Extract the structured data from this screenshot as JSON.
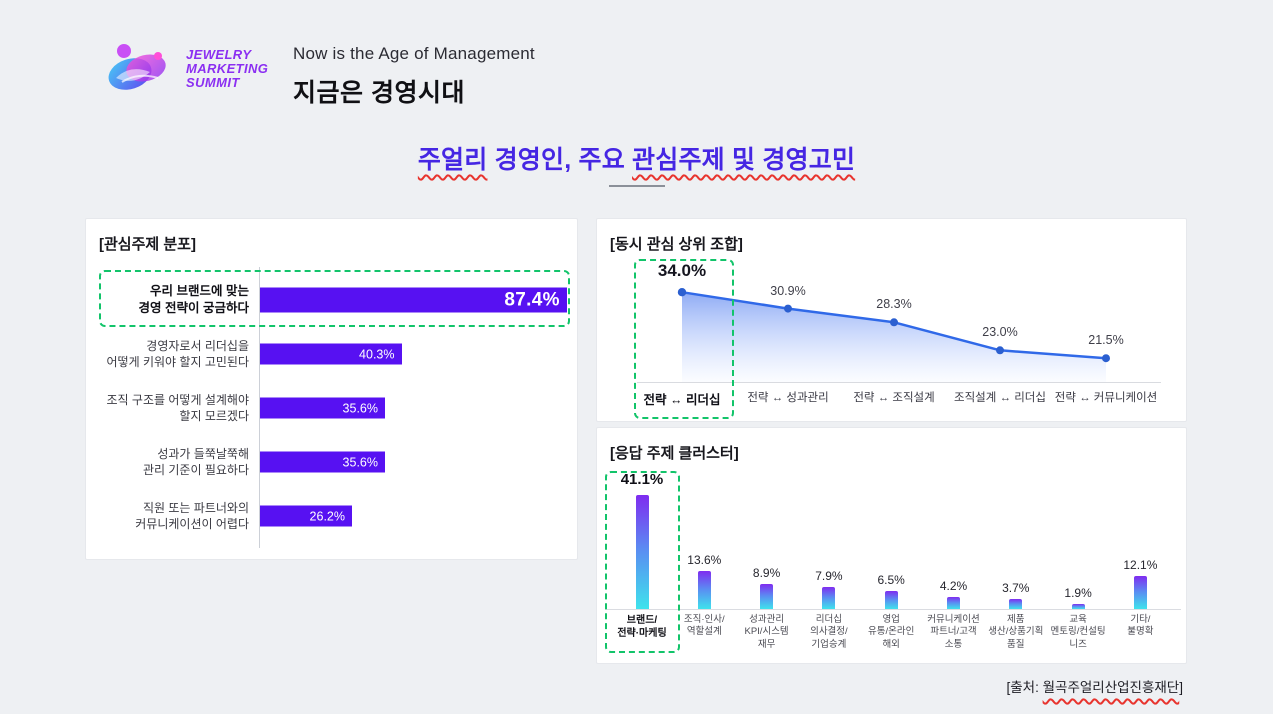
{
  "colors": {
    "accent_purple": "#5711f2",
    "title_blue": "#4526e3",
    "highlight_green": "#12c46a",
    "line_blue": "#3069e8",
    "cluster_gradient_top": "#7f2cf0",
    "cluster_gradient_bottom": "#3fe3ec",
    "wavy_red": "#e8342e"
  },
  "header": {
    "logo_lines": [
      "JEWELRY",
      "MARKETING",
      "SUMMIT"
    ],
    "title_en": "Now is the Age of Management",
    "title_ko": "지금은 경영시대"
  },
  "page_title": {
    "seg1": "주얼리",
    "seg2": " 경영인, 주요 ",
    "seg3": "관심주제 및 경영고민"
  },
  "source_note": {
    "prefix": "[출처: ",
    "name": "월곡주얼리산업진흥재단",
    "suffix": "]"
  },
  "chart_data": [
    {
      "type": "bar",
      "orientation": "horizontal",
      "title": "[관심주제 분포]",
      "categories": [
        "우리 브랜드에 맞는\n경영 전략이 궁금하다",
        "경영자로서 리더십을\n어떻게 키워야 할지 고민된다",
        "조직 구조를 어떻게 설계해야\n할지 모르겠다",
        "성과가 들쭉날쭉해\n관리 기준이 필요하다",
        "직원 또는 파트너와의\n커뮤니케이션이 어렵다"
      ],
      "values": [
        87.4,
        40.3,
        35.6,
        35.6,
        26.2
      ],
      "value_labels": [
        "87.4%",
        "40.3%",
        "35.6%",
        "35.6%",
        "26.2%"
      ],
      "xlim": [
        0,
        100
      ],
      "highlight_index": 0,
      "grid": false,
      "legend": false
    },
    {
      "type": "line",
      "title": "[동시 관심 상위 조합]",
      "categories": [
        "전략 ↔ 리더십",
        "전략 ↔ 성과관리",
        "전략 ↔ 조직설계",
        "조직설계 ↔ 리더십",
        "전략 ↔ 커뮤니케이션"
      ],
      "values": [
        34.0,
        30.9,
        28.3,
        23.0,
        21.5
      ],
      "value_labels": [
        "34.0%",
        "30.9%",
        "28.3%",
        "23.0%",
        "21.5%"
      ],
      "highlight_index": 0,
      "area_fill": true,
      "grid": false,
      "legend": false
    },
    {
      "type": "bar",
      "orientation": "vertical",
      "title": "[응답 주제 클러스터]",
      "categories": [
        "브랜드/\n전략·마케팅",
        "조직·인사/\n역할설계",
        "성과관리\nKPI/시스템\n재무",
        "리더십\n의사결정/\n기업승계",
        "영업\n유통/온라인\n해외",
        "커뮤니케이션\n파트너/고객\n소통",
        "제품\n생산/상품기획\n품질",
        "교육\n멘토링/컨설팅\n니즈",
        "기타/\n불명확"
      ],
      "values": [
        41.1,
        13.6,
        8.9,
        7.9,
        6.5,
        4.2,
        3.7,
        1.9,
        12.1
      ],
      "value_labels": [
        "41.1%",
        "13.6%",
        "8.9%",
        "7.9%",
        "6.5%",
        "4.2%",
        "3.7%",
        "1.9%",
        "12.1%"
      ],
      "ylim": [
        0,
        45
      ],
      "highlight_index": 0,
      "grid": false,
      "legend": false
    }
  ]
}
